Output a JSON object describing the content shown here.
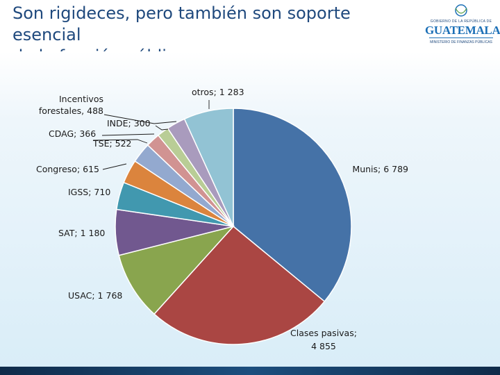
{
  "slide": {
    "title_line1": "Son rigideces, pero también son soporte esencial",
    "title_line2": "de la función pública"
  },
  "logo": {
    "government": "GOBIERNO DE LA REPÚBLICA DE",
    "name": "GUATEMALA",
    "ministry": "MINISTERIO DE FINANZAS PÚBLICAS"
  },
  "colors": {
    "title": "#1F497D",
    "footer": "#1c4e7e"
  },
  "chart_data": {
    "type": "pie",
    "title": "",
    "start_angle_deg": 0,
    "direction": "clockwise",
    "slices": [
      {
        "name": "Munis",
        "value": 6789,
        "label": "Munis;  6 789",
        "color": "#4572A7"
      },
      {
        "name": "Clases pasivas",
        "value": 4855,
        "label_line1": "Clases pasivas;",
        "label_line2": "4 855",
        "color": "#AA4643"
      },
      {
        "name": "USAC",
        "value": 1768,
        "label": "USAC;  1 768",
        "color": "#89A54E"
      },
      {
        "name": "SAT",
        "value": 1180,
        "label": "SAT;  1 180",
        "color": "#71588F"
      },
      {
        "name": "IGSS",
        "value": 710,
        "label": "IGSS;  710",
        "color": "#4198AF"
      },
      {
        "name": "Congreso",
        "value": 615,
        "label": "Congreso;  615",
        "color": "#DB843D"
      },
      {
        "name": "TSE",
        "value": 522,
        "label": "TSE;  522",
        "color": "#93A9CF"
      },
      {
        "name": "CDAG",
        "value": 366,
        "label": "CDAG;  366",
        "color": "#D19392"
      },
      {
        "name": "INDE",
        "value": 300,
        "label": "INDE;  300",
        "color": "#B9CD96"
      },
      {
        "name": "Incentivos forestales",
        "value": 488,
        "label_line1": "Incentivos",
        "label_line2": "forestales,  488",
        "color": "#A99BBD"
      },
      {
        "name": "otros",
        "value": 1283,
        "label": "otros;  1 283",
        "color": "#92C3D4"
      }
    ]
  }
}
